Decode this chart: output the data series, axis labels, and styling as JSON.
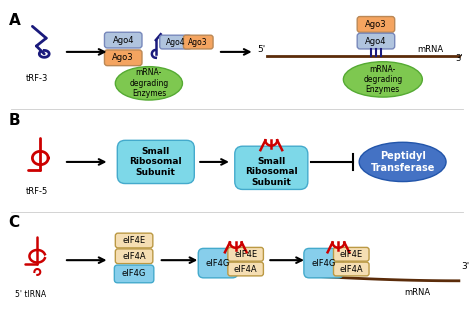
{
  "bg_color": "#ffffff",
  "colors": {
    "trf_blue": "#1a1a7c",
    "trf_red": "#cc0000",
    "ago4_fill": "#b0c4de",
    "ago3_fill": "#f4a460",
    "mrna_enzyme_fill": "#7ec850",
    "ribosome_fill": "#7dd8e8",
    "peptidyl_fill": "#4472c4",
    "eif4e_fill": "#f5deb3",
    "eif4a_fill": "#f5deb3",
    "eif4g_fill": "#87ceeb",
    "mrna_color": "#5b2c0a",
    "arrow_color": "#000000"
  },
  "section_A": {
    "trf3_label": "tRF-3",
    "ago4_label": "Ago4",
    "ago3_label": "Ago3",
    "mrna_enzyme_label": "mRNA-\ndegrading\nEnzymes",
    "mrna_label": "mRNA"
  },
  "section_B": {
    "trf5_label": "tRF-5",
    "small_ribo1_label": "Small\nRibosomal\nSubunit",
    "small_ribo2_label": "Small\nRibosomal\nSubunit",
    "peptidyl_label": "Peptidyl\nTransferase"
  },
  "section_C": {
    "tirna_label": "5' tIRNA",
    "eif4e_label": "eIF4E",
    "eif4a_label": "eIF4A",
    "eif4g_label": "eIF4G",
    "mrna_label": "mRNA"
  }
}
